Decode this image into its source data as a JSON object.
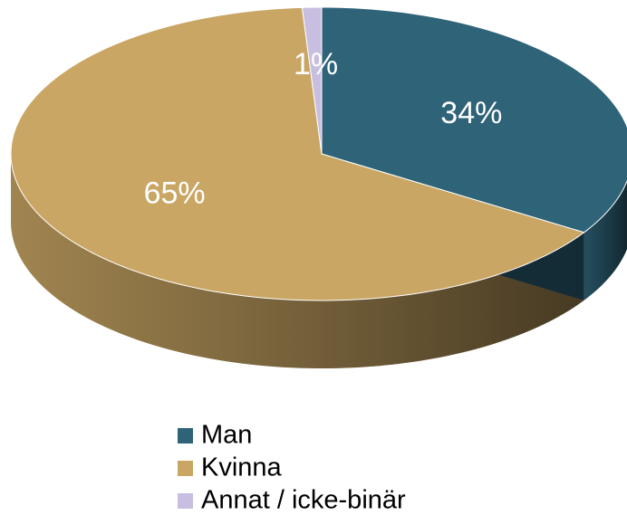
{
  "chart_data": {
    "type": "pie",
    "categories": [
      "Man",
      "Kvinna",
      "Annat / icke-binär"
    ],
    "values": [
      34,
      65,
      1
    ],
    "value_labels": [
      "34%",
      "65%",
      "1%"
    ],
    "colors": [
      "#2e6378",
      "#c9a664",
      "#c8bfe0"
    ],
    "legend": "bottom"
  }
}
